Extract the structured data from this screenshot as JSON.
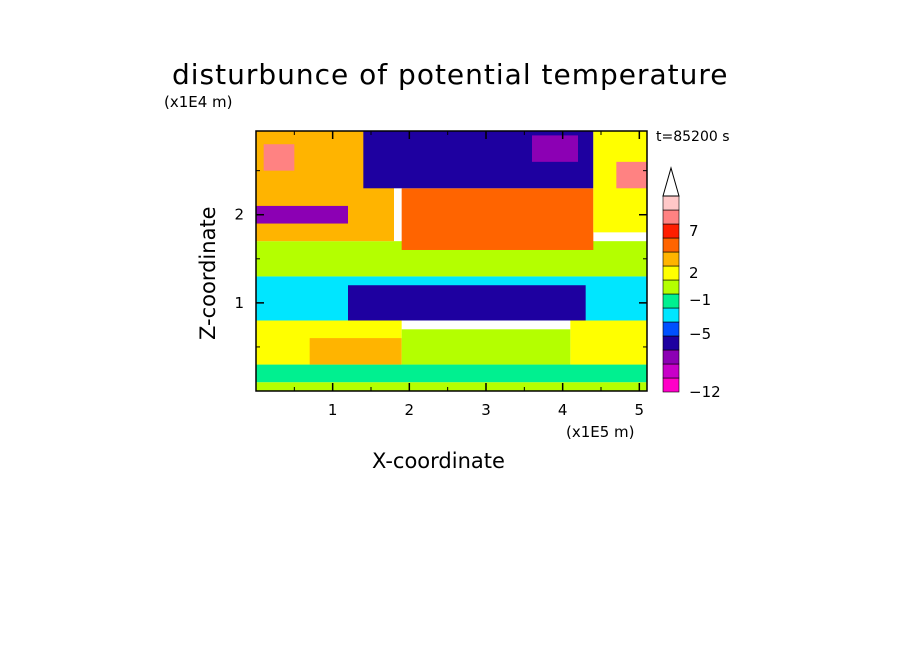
{
  "chart_data": {
    "type": "heatmap",
    "title": "disturbunce of potential temperature",
    "xlabel": "X-coordinate",
    "ylabel": "Z-coordinate",
    "x_unit": "(x1E5 m)",
    "y_unit": "(x1E4 m)",
    "time_label": "t=85200 s",
    "xlim": [
      0,
      5.1
    ],
    "ylim": [
      0,
      2.95
    ],
    "x_ticks": [
      "1",
      "2",
      "3",
      "4",
      "5"
    ],
    "x_tick_values": [
      1,
      2,
      3,
      4,
      5
    ],
    "y_ticks": [
      "1",
      "2"
    ],
    "y_tick_values": [
      1,
      2
    ],
    "colorbar": {
      "tick_labels": [
        "7",
        "2",
        "−1",
        "−5",
        "−12"
      ],
      "levels": [
        -12,
        -10,
        -8,
        -5,
        -3,
        -1,
        0,
        1,
        2,
        4,
        5,
        7,
        9,
        11
      ],
      "colors": [
        "#ff00c8",
        "#c800c8",
        "#8c00b4",
        "#1e00a0",
        "#0050ff",
        "#00e6ff",
        "#00f090",
        "#b4ff00",
        "#ffff00",
        "#ffb400",
        "#ff6400",
        "#ff1e00",
        "#ff8282",
        "#ffc8c8"
      ],
      "extend": "max"
    },
    "field_regions": [
      {
        "x": [
          0,
          5.1
        ],
        "z": [
          0,
          0.1
        ],
        "value": 1.5
      },
      {
        "x": [
          0,
          5.1
        ],
        "z": [
          0.1,
          0.3
        ],
        "value": 0.5
      },
      {
        "x": [
          0,
          1.9
        ],
        "z": [
          0.3,
          0.8
        ],
        "value": 3
      },
      {
        "x": [
          0.7,
          1.9
        ],
        "z": [
          0.3,
          0.6
        ],
        "value": 4.5
      },
      {
        "x": [
          4.1,
          5.1
        ],
        "z": [
          0.3,
          0.8
        ],
        "value": 2
      },
      {
        "x": [
          1.9,
          4.1
        ],
        "z": [
          0.3,
          0.7
        ],
        "value": 1
      },
      {
        "x": [
          0,
          5.1
        ],
        "z": [
          0.8,
          1.3
        ],
        "value": -1
      },
      {
        "x": [
          1.2,
          4.3
        ],
        "z": [
          0.8,
          1.2
        ],
        "value": -4
      },
      {
        "x": [
          0,
          5.1
        ],
        "z": [
          1.3,
          1.7
        ],
        "value": 1
      },
      {
        "x": [
          0,
          1.8
        ],
        "z": [
          1.7,
          2.95
        ],
        "value": 4.5
      },
      {
        "x": [
          1.9,
          4.4
        ],
        "z": [
          1.6,
          2.3
        ],
        "value": 5
      },
      {
        "x": [
          1.4,
          4.4
        ],
        "z": [
          2.3,
          2.95
        ],
        "value": -4
      },
      {
        "x": [
          4.4,
          5.1
        ],
        "z": [
          1.8,
          2.95
        ],
        "value": 3.5
      },
      {
        "x": [
          0.1,
          0.5
        ],
        "z": [
          2.5,
          2.8
        ],
        "value": 9
      },
      {
        "x": [
          4.7,
          5.1
        ],
        "z": [
          2.3,
          2.6
        ],
        "value": 9
      },
      {
        "x": [
          0,
          1.2
        ],
        "z": [
          1.9,
          2.1
        ],
        "value": -6
      },
      {
        "x": [
          3.6,
          4.2
        ],
        "z": [
          2.6,
          2.9
        ],
        "value": -8
      }
    ]
  }
}
